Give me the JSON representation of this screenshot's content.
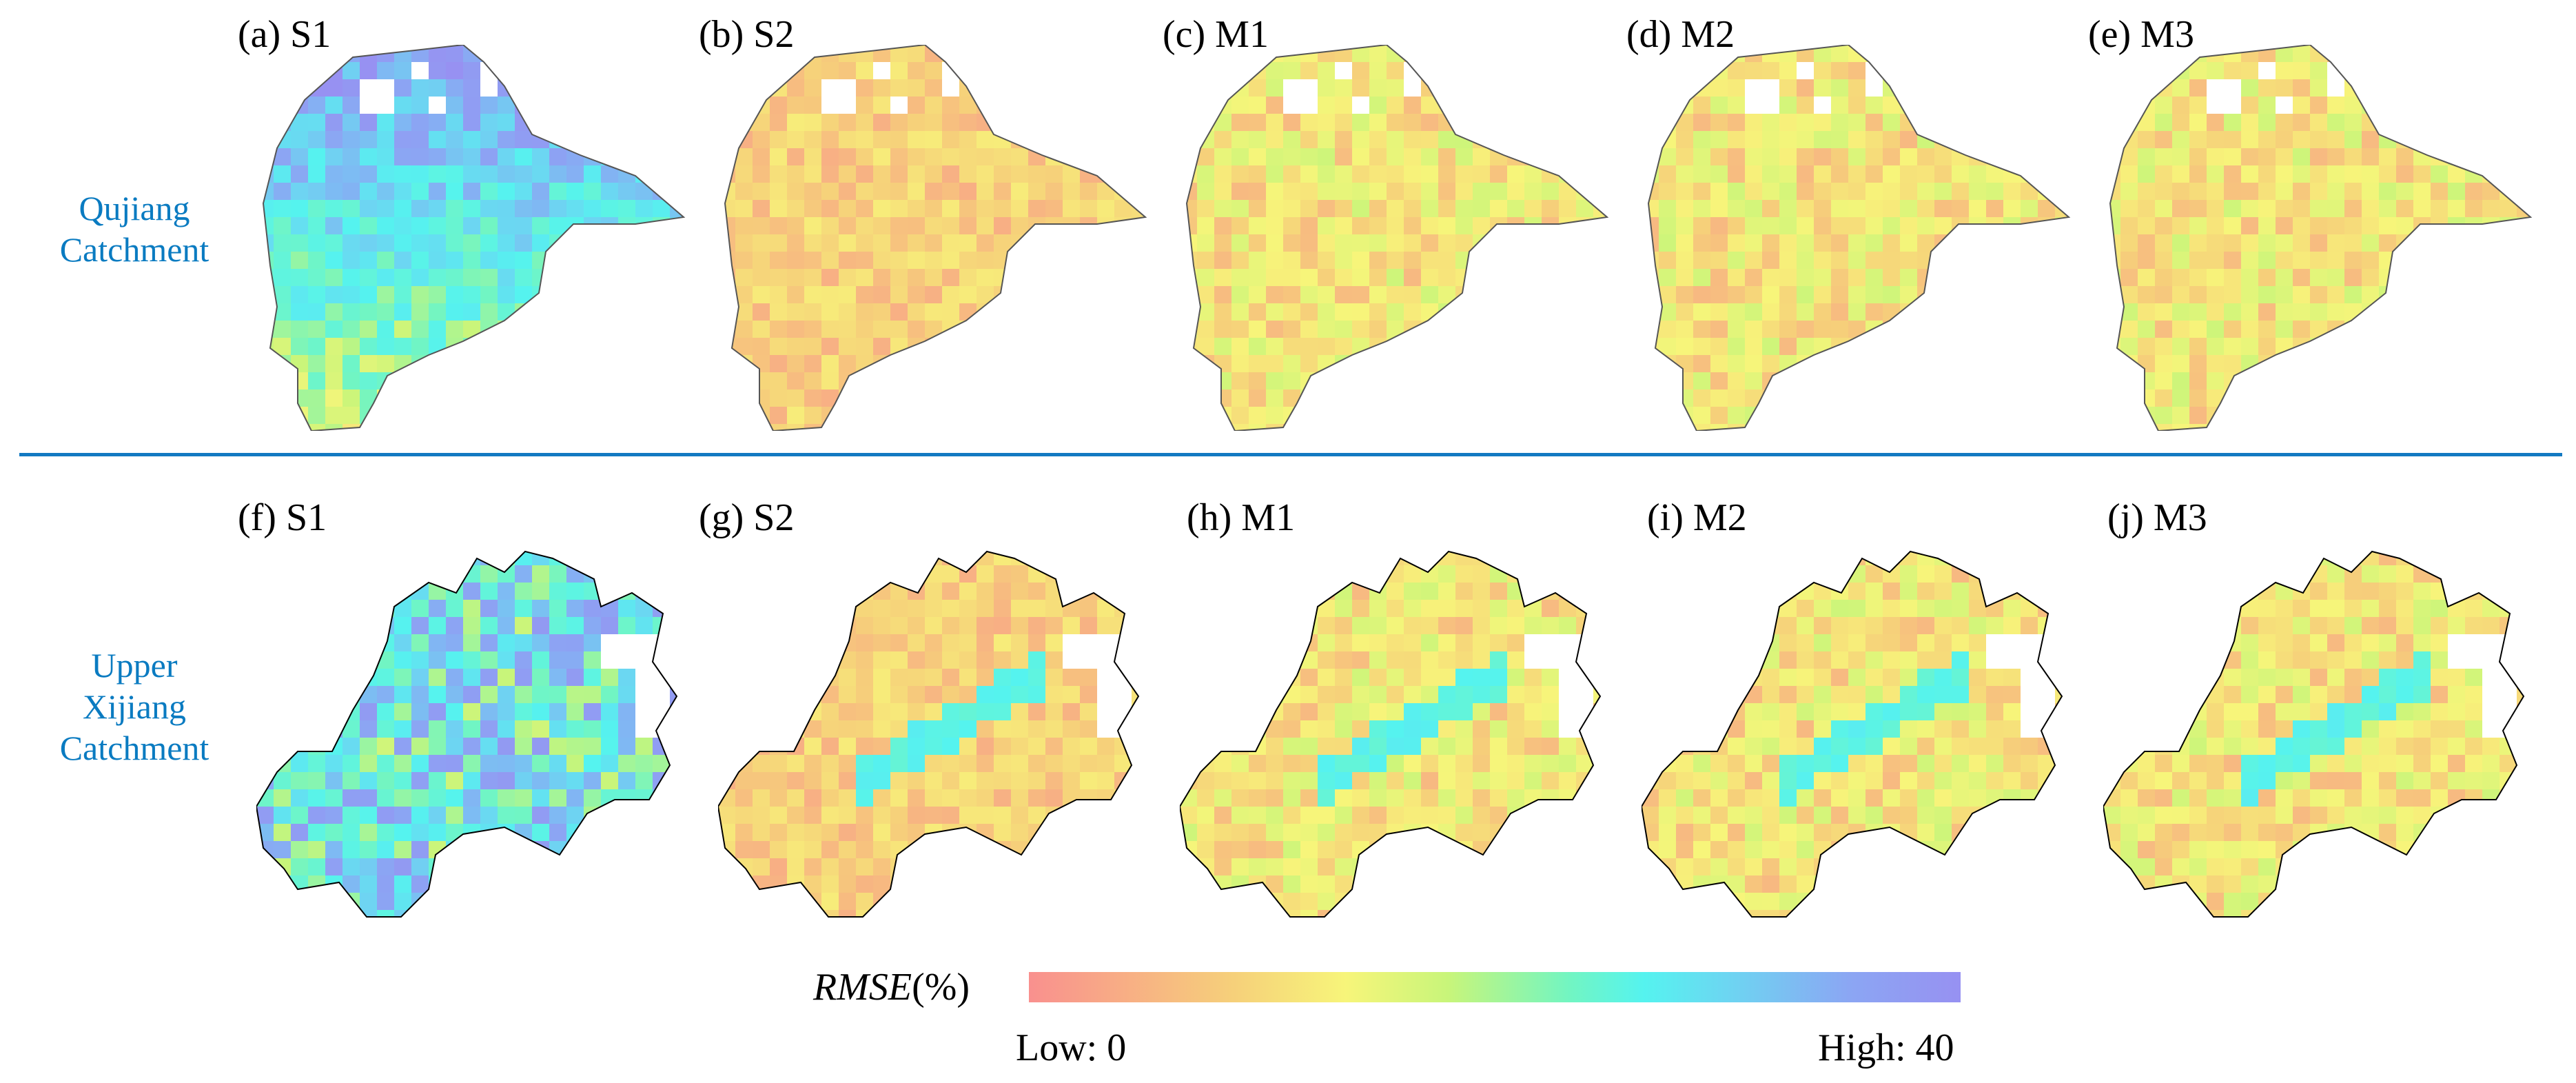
{
  "rows": [
    {
      "label_lines": [
        "Qujiang",
        "Catchment"
      ]
    },
    {
      "label_lines": [
        "Upper",
        "Xijiang",
        "Catchment"
      ]
    }
  ],
  "panels": [
    {
      "label": "(a) S1",
      "row": 0,
      "scheme": "S1"
    },
    {
      "label": "(b) S2",
      "row": 0,
      "scheme": "S2"
    },
    {
      "label": "(c) M1",
      "row": 0,
      "scheme": "M1"
    },
    {
      "label": "(d) M2",
      "row": 0,
      "scheme": "M2"
    },
    {
      "label": "(e) M3",
      "row": 0,
      "scheme": "M3"
    },
    {
      "label": "(f) S1",
      "row": 1,
      "scheme": "S1"
    },
    {
      "label": "(g) S2",
      "row": 1,
      "scheme": "S2"
    },
    {
      "label": "(h) M1",
      "row": 1,
      "scheme": "M1"
    },
    {
      "label": "(i) M2",
      "row": 1,
      "scheme": "M2"
    },
    {
      "label": "(j) M3",
      "row": 1,
      "scheme": "M3"
    }
  ],
  "colorbar": {
    "title_var": "RMSE",
    "title_unit": "(%)",
    "low_label": "Low: 0",
    "high_label": "High: 40",
    "min": 0,
    "max": 40
  },
  "colors": {
    "row_label": "#0a7bc1",
    "divider": "#1279c2",
    "ramp": [
      "#f9908e",
      "#f6d07a",
      "#f7f57a",
      "#c8f57a",
      "#72f5c2",
      "#55f3ef",
      "#6fd2f2",
      "#8ba6f3",
      "#9791f2"
    ]
  }
}
